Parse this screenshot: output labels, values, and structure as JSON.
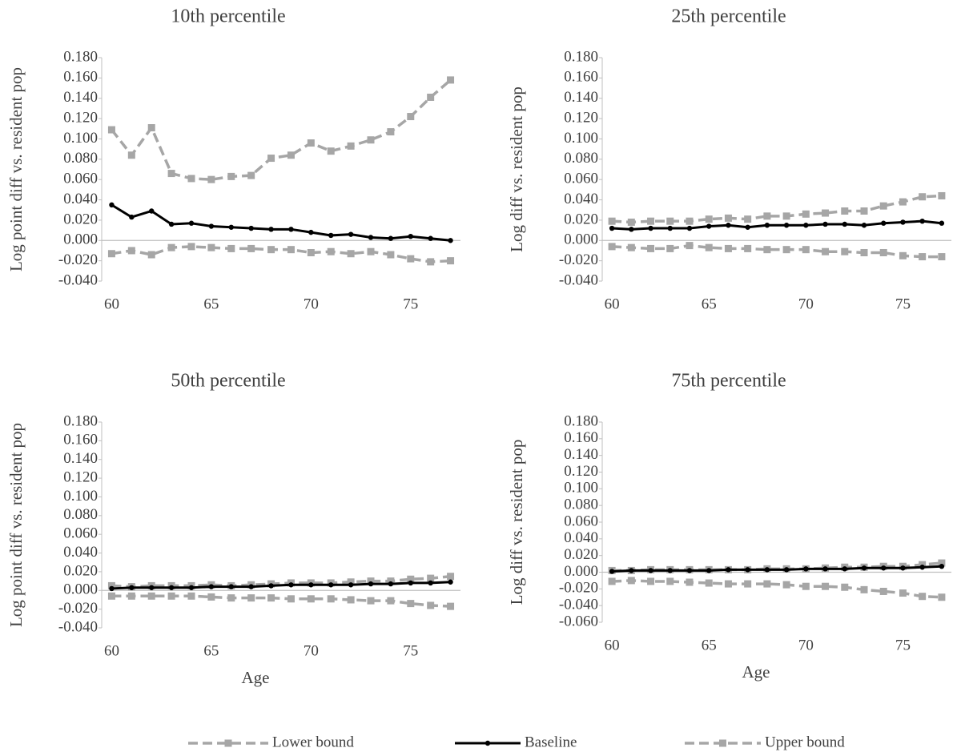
{
  "chart_data": [
    {
      "type": "line",
      "title": "10th percentile",
      "ylabel": "Log point diff vs. resident pop",
      "x": [
        60,
        61,
        62,
        63,
        64,
        65,
        66,
        67,
        68,
        69,
        70,
        71,
        72,
        73,
        74,
        75,
        76,
        77
      ],
      "xlim": [
        59.5,
        77.5
      ],
      "xticks": [
        60,
        65,
        70,
        75
      ],
      "ylim": [
        -0.04,
        0.18
      ],
      "yticks": [
        {
          "value": -0.04,
          "label": "-0.040"
        },
        {
          "value": -0.02,
          "label": "-0.020"
        },
        {
          "value": 0,
          "label": "0.000"
        },
        {
          "value": 0.02,
          "label": "0.020"
        },
        {
          "value": 0.04,
          "label": "0.040"
        },
        {
          "value": 0.06,
          "label": "0.060"
        },
        {
          "value": 0.08,
          "label": "0.080"
        },
        {
          "value": 0.1,
          "label": "0.100"
        },
        {
          "value": 0.12,
          "label": "0.120"
        },
        {
          "value": 0.14,
          "label": "0.140"
        },
        {
          "value": 0.16,
          "label": "0.160"
        },
        {
          "value": 0.18,
          "label": "0.180"
        }
      ],
      "series": [
        {
          "name": "Lower bound",
          "color": "#a6a6a6",
          "values": [
            -0.013,
            -0.01,
            -0.014,
            -0.007,
            -0.006,
            -0.007,
            -0.008,
            -0.008,
            -0.009,
            -0.009,
            -0.012,
            -0.011,
            -0.013,
            -0.011,
            -0.014,
            -0.018,
            -0.021,
            -0.02
          ]
        },
        {
          "name": "Baseline",
          "color": "#000000",
          "values": [
            0.035,
            0.023,
            0.029,
            0.016,
            0.017,
            0.014,
            0.013,
            0.012,
            0.011,
            0.011,
            0.008,
            0.005,
            0.006,
            0.003,
            0.002,
            0.004,
            0.002,
            0.0
          ]
        },
        {
          "name": "Upper bound",
          "color": "#a6a6a6",
          "values": [
            0.109,
            0.084,
            0.111,
            0.066,
            0.061,
            0.06,
            0.063,
            0.064,
            0.081,
            0.084,
            0.096,
            0.088,
            0.093,
            0.099,
            0.107,
            0.122,
            0.141,
            0.158
          ]
        }
      ]
    },
    {
      "type": "line",
      "title": "25th percentile",
      "ylabel": "Log diff vs. resident pop",
      "x": [
        60,
        61,
        62,
        63,
        64,
        65,
        66,
        67,
        68,
        69,
        70,
        71,
        72,
        73,
        74,
        75,
        76,
        77
      ],
      "xlim": [
        59.5,
        77.5
      ],
      "xticks": [
        60,
        65,
        70,
        75
      ],
      "ylim": [
        -0.04,
        0.18
      ],
      "yticks": [
        {
          "value": -0.04,
          "label": "-0.040"
        },
        {
          "value": -0.02,
          "label": "-0.020"
        },
        {
          "value": 0,
          "label": "0.000"
        },
        {
          "value": 0.02,
          "label": "0.020"
        },
        {
          "value": 0.04,
          "label": "0.040"
        },
        {
          "value": 0.06,
          "label": "0.060"
        },
        {
          "value": 0.08,
          "label": "0.080"
        },
        {
          "value": 0.1,
          "label": "0.100"
        },
        {
          "value": 0.12,
          "label": "0.120"
        },
        {
          "value": 0.14,
          "label": "0.140"
        },
        {
          "value": 0.16,
          "label": "0.160"
        },
        {
          "value": 0.18,
          "label": "0.180"
        }
      ],
      "series": [
        {
          "name": "Lower bound",
          "color": "#a6a6a6",
          "values": [
            -0.006,
            -0.007,
            -0.008,
            -0.008,
            -0.005,
            -0.007,
            -0.008,
            -0.008,
            -0.009,
            -0.009,
            -0.009,
            -0.011,
            -0.011,
            -0.012,
            -0.012,
            -0.015,
            -0.016,
            -0.016
          ]
        },
        {
          "name": "Baseline",
          "color": "#000000",
          "values": [
            0.012,
            0.011,
            0.012,
            0.012,
            0.012,
            0.014,
            0.015,
            0.013,
            0.015,
            0.015,
            0.015,
            0.016,
            0.016,
            0.015,
            0.017,
            0.018,
            0.019,
            0.017
          ]
        },
        {
          "name": "Upper bound",
          "color": "#a6a6a6",
          "values": [
            0.019,
            0.018,
            0.019,
            0.019,
            0.019,
            0.021,
            0.022,
            0.021,
            0.024,
            0.024,
            0.026,
            0.027,
            0.029,
            0.029,
            0.034,
            0.038,
            0.043,
            0.044
          ]
        }
      ]
    },
    {
      "type": "line",
      "title": "50th percentile",
      "ylabel": "Log point diff vs. resident pop",
      "xlabel": "Age",
      "x": [
        60,
        61,
        62,
        63,
        64,
        65,
        66,
        67,
        68,
        69,
        70,
        71,
        72,
        73,
        74,
        75,
        76,
        77
      ],
      "xlim": [
        59.5,
        77.5
      ],
      "xticks": [
        60,
        65,
        70,
        75
      ],
      "ylim": [
        -0.04,
        0.18
      ],
      "yticks": [
        {
          "value": -0.04,
          "label": "-0.040"
        },
        {
          "value": -0.02,
          "label": "-0.020"
        },
        {
          "value": 0,
          "label": "0.000"
        },
        {
          "value": 0.02,
          "label": "0.020"
        },
        {
          "value": 0.04,
          "label": "0.040"
        },
        {
          "value": 0.06,
          "label": "0.060"
        },
        {
          "value": 0.08,
          "label": "0.080"
        },
        {
          "value": 0.1,
          "label": "0.100"
        },
        {
          "value": 0.12,
          "label": "0.120"
        },
        {
          "value": 0.14,
          "label": "0.140"
        },
        {
          "value": 0.16,
          "label": "0.160"
        },
        {
          "value": 0.18,
          "label": "0.180"
        }
      ],
      "series": [
        {
          "name": "Lower bound",
          "color": "#a6a6a6",
          "values": [
            -0.006,
            -0.006,
            -0.006,
            -0.006,
            -0.006,
            -0.007,
            -0.008,
            -0.008,
            -0.008,
            -0.009,
            -0.009,
            -0.009,
            -0.01,
            -0.011,
            -0.011,
            -0.014,
            -0.016,
            -0.017
          ]
        },
        {
          "name": "Baseline",
          "color": "#000000",
          "values": [
            0.002,
            0.003,
            0.003,
            0.003,
            0.003,
            0.004,
            0.004,
            0.004,
            0.005,
            0.006,
            0.006,
            0.006,
            0.006,
            0.007,
            0.007,
            0.008,
            0.008,
            0.009
          ]
        },
        {
          "name": "Upper bound",
          "color": "#a6a6a6",
          "values": [
            0.005,
            0.004,
            0.005,
            0.005,
            0.005,
            0.006,
            0.005,
            0.006,
            0.007,
            0.008,
            0.008,
            0.008,
            0.009,
            0.01,
            0.01,
            0.012,
            0.013,
            0.015
          ]
        }
      ]
    },
    {
      "type": "line",
      "title": "75th percentile",
      "ylabel": "Log diff vs. resident pop",
      "xlabel": "Age",
      "x": [
        60,
        61,
        62,
        63,
        64,
        65,
        66,
        67,
        68,
        69,
        70,
        71,
        72,
        73,
        74,
        75,
        76,
        77
      ],
      "xlim": [
        59.5,
        77.5
      ],
      "xticks": [
        60,
        65,
        70,
        75
      ],
      "ylim": [
        -0.06,
        0.18
      ],
      "yticks": [
        {
          "value": -0.06,
          "label": "-0.060"
        },
        {
          "value": -0.04,
          "label": "-0.040"
        },
        {
          "value": -0.02,
          "label": "-0.020"
        },
        {
          "value": 0,
          "label": "0.000"
        },
        {
          "value": 0.02,
          "label": "0.020"
        },
        {
          "value": 0.04,
          "label": "0.040"
        },
        {
          "value": 0.06,
          "label": "0.060"
        },
        {
          "value": 0.08,
          "label": "0.080"
        },
        {
          "value": 0.1,
          "label": "0.100"
        },
        {
          "value": 0.12,
          "label": "0.120"
        },
        {
          "value": 0.14,
          "label": "0.140"
        },
        {
          "value": 0.16,
          "label": "0.160"
        },
        {
          "value": 0.18,
          "label": "0.180"
        }
      ],
      "series": [
        {
          "name": "Lower bound",
          "color": "#a6a6a6",
          "values": [
            -0.011,
            -0.01,
            -0.011,
            -0.011,
            -0.012,
            -0.013,
            -0.014,
            -0.014,
            -0.014,
            -0.015,
            -0.017,
            -0.017,
            -0.018,
            -0.021,
            -0.023,
            -0.025,
            -0.029,
            -0.03
          ]
        },
        {
          "name": "Baseline",
          "color": "#000000",
          "values": [
            0.001,
            0.002,
            0.002,
            0.002,
            0.002,
            0.002,
            0.003,
            0.003,
            0.003,
            0.003,
            0.004,
            0.004,
            0.004,
            0.005,
            0.005,
            0.005,
            0.006,
            0.007
          ]
        },
        {
          "name": "Upper bound",
          "color": "#a6a6a6",
          "values": [
            0.002,
            0.002,
            0.003,
            0.003,
            0.003,
            0.003,
            0.003,
            0.003,
            0.004,
            0.004,
            0.004,
            0.005,
            0.006,
            0.006,
            0.007,
            0.007,
            0.009,
            0.011
          ]
        }
      ]
    }
  ]
}
